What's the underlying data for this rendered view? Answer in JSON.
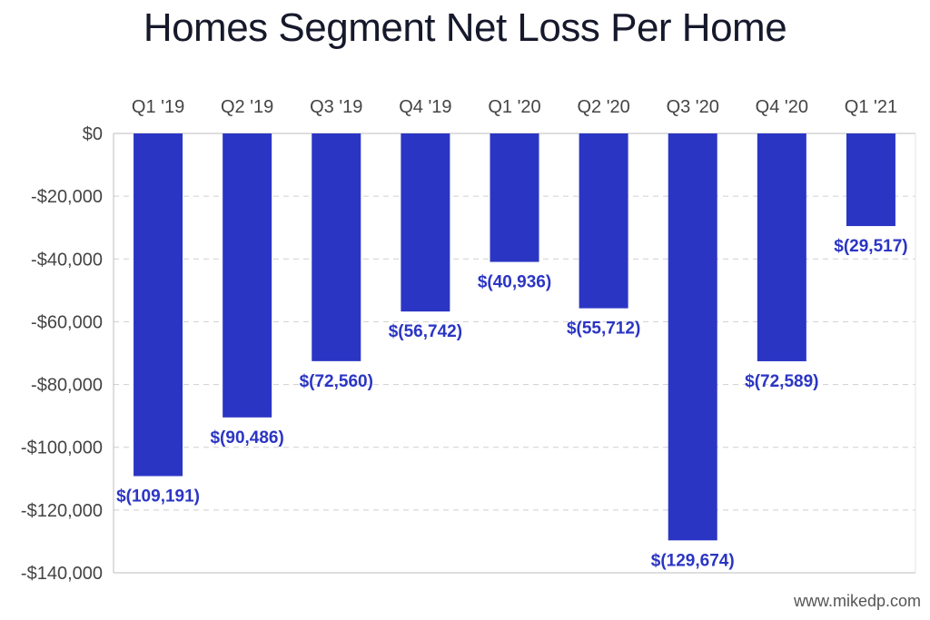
{
  "chart_data": {
    "type": "bar",
    "title": "Homes Segment Net Loss Per Home",
    "categories": [
      "Q1 '19",
      "Q2 '19",
      "Q3 '19",
      "Q4 '19",
      "Q1 '20",
      "Q2 '20",
      "Q3 '20",
      "Q4 '20",
      "Q1 '21"
    ],
    "values": [
      -109191,
      -90486,
      -72560,
      -56742,
      -40936,
      -55712,
      -129674,
      -72589,
      -29517
    ],
    "data_labels": [
      "$(109,191)",
      "$(90,486)",
      "$(72,560)",
      "$(56,742)",
      "$(40,936)",
      "$(55,712)",
      "$(129,674)",
      "$(72,589)",
      "$(29,517)"
    ],
    "y_ticks": [
      0,
      -20000,
      -40000,
      -60000,
      -80000,
      -100000,
      -120000,
      -140000
    ],
    "y_tick_labels": [
      "$0",
      "-$20,000",
      "-$40,000",
      "-$60,000",
      "-$80,000",
      "-$100,000",
      "-$120,000",
      "-$140,000"
    ],
    "ylim": [
      -140000,
      0
    ],
    "x_axis_position": "top",
    "grid": true,
    "bar_color": "#2b35c4",
    "label_color": "#2b35c4",
    "source": "www.mikedp.com"
  }
}
